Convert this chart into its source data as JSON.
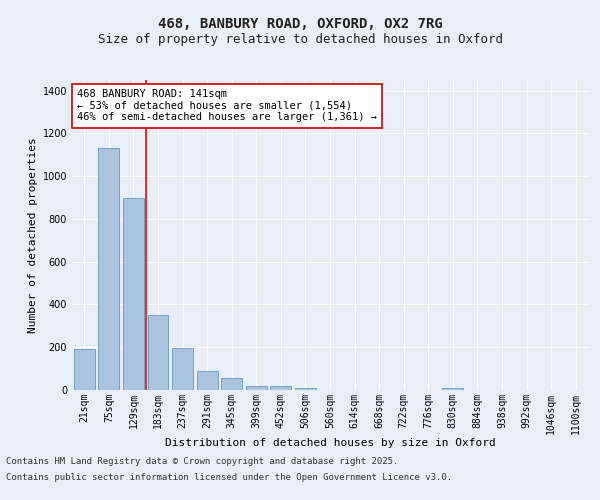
{
  "title_line1": "468, BANBURY ROAD, OXFORD, OX2 7RG",
  "title_line2": "Size of property relative to detached houses in Oxford",
  "xlabel": "Distribution of detached houses by size in Oxford",
  "ylabel": "Number of detached properties",
  "categories": [
    "21sqm",
    "75sqm",
    "129sqm",
    "183sqm",
    "237sqm",
    "291sqm",
    "345sqm",
    "399sqm",
    "452sqm",
    "506sqm",
    "560sqm",
    "614sqm",
    "668sqm",
    "722sqm",
    "776sqm",
    "830sqm",
    "884sqm",
    "938sqm",
    "992sqm",
    "1046sqm",
    "1100sqm"
  ],
  "values": [
    190,
    1130,
    900,
    350,
    195,
    90,
    55,
    20,
    20,
    10,
    0,
    0,
    0,
    0,
    0,
    10,
    0,
    0,
    0,
    0,
    0
  ],
  "bar_color": "#aac4e0",
  "bar_edge_color": "#6699bb",
  "background_color": "#e8eef5",
  "grid_color": "#ffffff",
  "red_line_x": 2.5,
  "annotation_text": "468 BANBURY ROAD: 141sqm\n← 53% of detached houses are smaller (1,554)\n46% of semi-detached houses are larger (1,361) →",
  "annotation_box_facecolor": "#ffffff",
  "annotation_box_edgecolor": "#cc0000",
  "ylim": [
    0,
    1450
  ],
  "yticks": [
    0,
    200,
    400,
    600,
    800,
    1000,
    1200,
    1400
  ],
  "footer_line1": "Contains HM Land Registry data © Crown copyright and database right 2025.",
  "footer_line2": "Contains public sector information licensed under the Open Government Licence v3.0.",
  "title_fontsize": 10,
  "subtitle_fontsize": 9,
  "axis_label_fontsize": 8,
  "tick_fontsize": 7,
  "annotation_fontsize": 7.5,
  "footer_fontsize": 6.5
}
